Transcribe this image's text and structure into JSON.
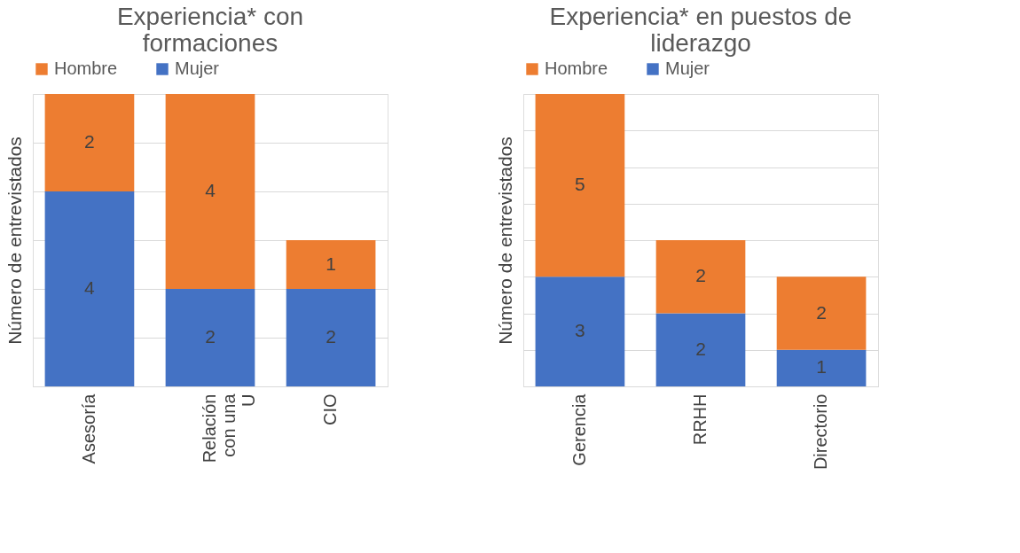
{
  "chart_data": [
    {
      "type": "bar",
      "title": "Experiencia* con formaciones",
      "ylabel": "Número de entrevistados",
      "categories": [
        "Asesoría",
        "Relación con una U",
        "CIO"
      ],
      "stacked": true,
      "data_labels": true,
      "legend": "top",
      "grid": "y",
      "tick_labels": "x",
      "ylim": [
        0,
        6
      ],
      "yticks": [
        {
          "value": 0,
          "label": null
        },
        {
          "value": 1,
          "label": null
        },
        {
          "value": 2,
          "label": null
        },
        {
          "value": 3,
          "label": null
        },
        {
          "value": 4,
          "label": null
        },
        {
          "value": 5,
          "label": null
        },
        {
          "value": 6,
          "label": null
        }
      ],
      "series": [
        {
          "name": "Mujer",
          "color": "#4472c4",
          "values": [
            4,
            2,
            2
          ]
        },
        {
          "name": "Hombre",
          "color": "#ed7d31",
          "values": [
            2,
            4,
            1
          ]
        }
      ]
    },
    {
      "type": "bar",
      "title": "Experiencia* en puestos de liderazgo",
      "ylabel": "Número de entrevistados",
      "categories": [
        "Gerencia",
        "RRHH",
        "Directorio"
      ],
      "stacked": true,
      "data_labels": true,
      "legend": "top",
      "grid": "y",
      "tick_labels": "x",
      "ylim": [
        0,
        8
      ],
      "yticks": [
        {
          "value": 0,
          "label": null
        },
        {
          "value": 1,
          "label": null
        },
        {
          "value": 2,
          "label": null
        },
        {
          "value": 3,
          "label": null
        },
        {
          "value": 4,
          "label": null
        },
        {
          "value": 5,
          "label": null
        },
        {
          "value": 6,
          "label": null
        },
        {
          "value": 7,
          "label": null
        },
        {
          "value": 8,
          "label": null
        }
      ],
      "series": [
        {
          "name": "Mujer",
          "color": "#4472c4",
          "values": [
            3,
            2,
            1
          ]
        },
        {
          "name": "Hombre",
          "color": "#ed7d31",
          "values": [
            5,
            2,
            2
          ]
        }
      ]
    }
  ]
}
